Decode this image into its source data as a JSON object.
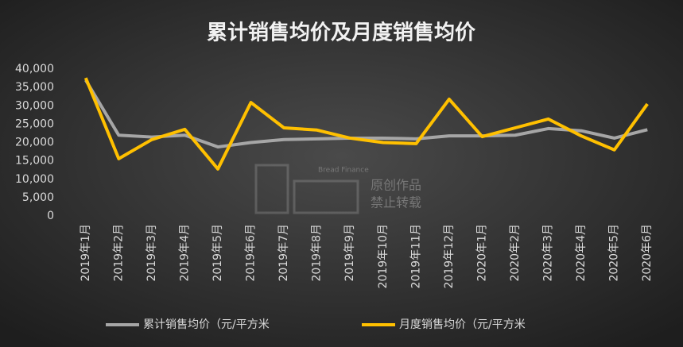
{
  "chart_data": {
    "type": "line",
    "title": "累计销售均价及月度销售均价",
    "categories": [
      "2019年1月",
      "2019年2月",
      "2019年3月",
      "2019年4月",
      "2019年5月",
      "2019年6月",
      "2019年7月",
      "2019年8月",
      "2019年9月",
      "2019年10月",
      "2019年11月",
      "2019年12月",
      "2020年1月",
      "2020年2月",
      "2020年3月",
      "2020年4月",
      "2020年5月",
      "2020年6月"
    ],
    "series": [
      {
        "name": "累计销售均价（元/平方米",
        "color": "#a6a6a6",
        "values": [
          37000,
          22000,
          21500,
          22000,
          18800,
          20000,
          20800,
          21000,
          21200,
          21200,
          21000,
          21800,
          21800,
          22000,
          23800,
          23200,
          21200,
          23500
        ]
      },
      {
        "name": "月度销售均价（元/平方米",
        "color": "#ffc000",
        "values": [
          37600,
          15600,
          20800,
          23600,
          12800,
          30900,
          24000,
          23400,
          21200,
          20000,
          19700,
          31800,
          21600,
          24000,
          26400,
          21800,
          18000,
          30500
        ]
      }
    ],
    "ylim": [
      0,
      40000
    ],
    "yticks": [
      0,
      {
        "value": 5000,
        "label": "5,000"
      },
      {
        "value": 10000,
        "label": "10,000"
      },
      {
        "value": 15000,
        "label": "15,000"
      },
      {
        "value": 20000,
        "label": "20,000"
      },
      {
        "value": 25000,
        "label": "25,000"
      },
      {
        "value": 30000,
        "label": "30,000"
      },
      {
        "value": 35000,
        "label": "35,000"
      },
      {
        "value": 40000,
        "label": "40,000"
      }
    ],
    "grid": false,
    "watermark": [
      "Bread Finance",
      "原创作品",
      "禁止转载"
    ]
  }
}
